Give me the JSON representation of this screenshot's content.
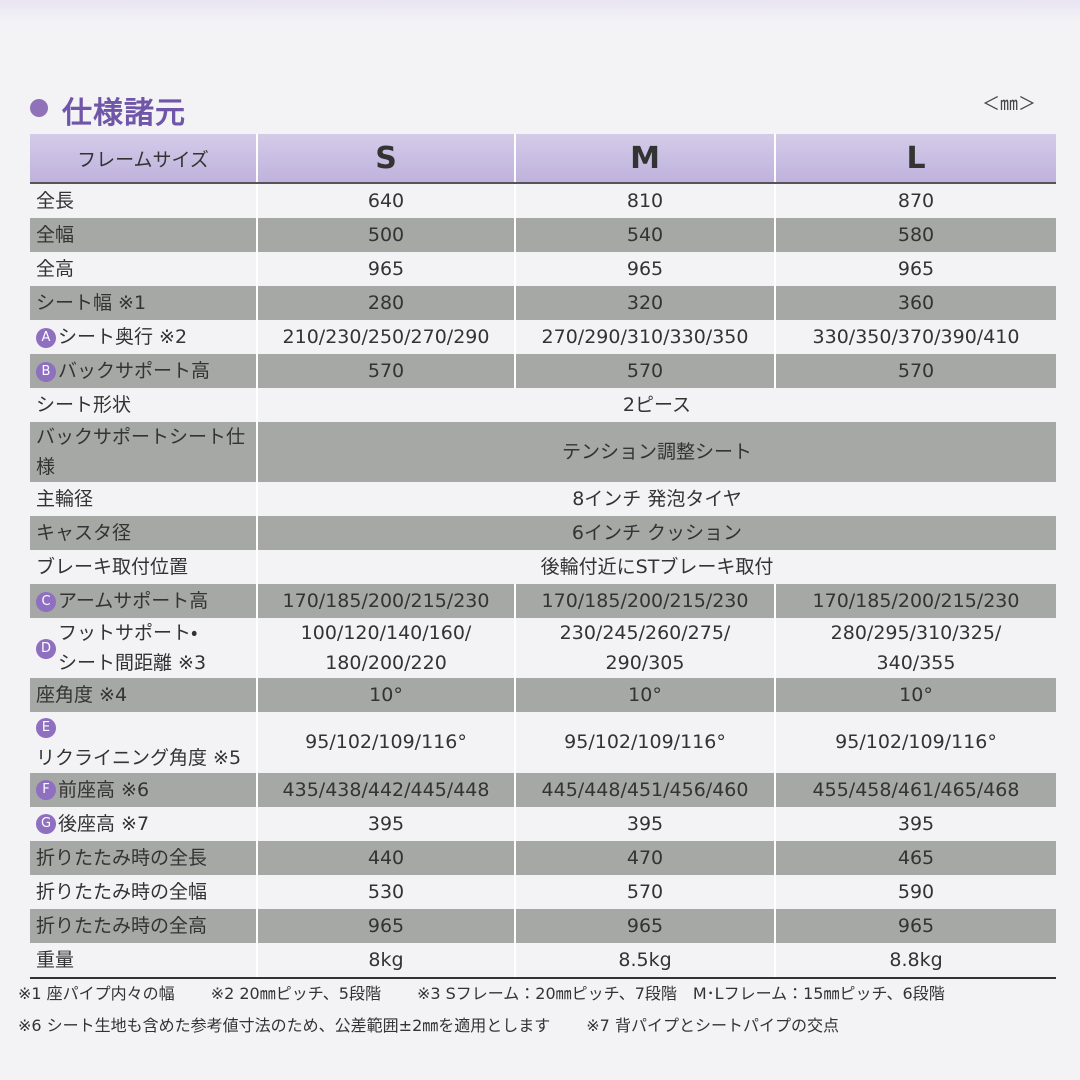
{
  "header": {
    "title": "仕様諸元",
    "unit": "＜㎜＞"
  },
  "table": {
    "columns": [
      "フレームサイズ",
      "S",
      "M",
      "L"
    ],
    "rows": [
      {
        "label": "全長",
        "values": [
          "640",
          "810",
          "870"
        ]
      },
      {
        "label": "全幅",
        "values": [
          "500",
          "540",
          "580"
        ]
      },
      {
        "label": "全高",
        "values": [
          "965",
          "965",
          "965"
        ]
      },
      {
        "label": "シート幅 ※1",
        "values": [
          "280",
          "320",
          "360"
        ]
      },
      {
        "marker": "A",
        "label": "シート奥行 ※2",
        "values": [
          "210/230/250/270/290",
          "270/290/310/330/350",
          "330/350/370/390/410"
        ]
      },
      {
        "marker": "B",
        "label": "バックサポート高",
        "values": [
          "570",
          "570",
          "570"
        ]
      },
      {
        "label": "シート形状",
        "value": "2ピース"
      },
      {
        "label": "バックサポートシート仕様",
        "value": "テンション調整シート"
      },
      {
        "label": "主輪径",
        "value": "8インチ 発泡タイヤ"
      },
      {
        "label": "キャスタ径",
        "value": "6インチ クッション"
      },
      {
        "label": "ブレーキ取付位置",
        "value": "後輪付近にSTブレーキ取付"
      },
      {
        "marker": "C",
        "label": "アームサポート高",
        "values": [
          "170/185/200/215/230",
          "170/185/200/215/230",
          "170/185/200/215/230"
        ]
      },
      {
        "marker": "D",
        "label": "フットサポート・\nシート間距離 ※3",
        "values": [
          "100/120/140/160/\n180/200/220",
          "230/245/260/275/\n290/305",
          "280/295/310/325/\n340/355"
        ]
      },
      {
        "label": "座角度 ※4",
        "values": [
          "10°",
          "10°",
          "10°"
        ]
      },
      {
        "marker": "E",
        "label": "リクライニング角度 ※5",
        "values": [
          "95/102/109/116°",
          "95/102/109/116°",
          "95/102/109/116°"
        ]
      },
      {
        "marker": "F",
        "label": "前座高 ※6",
        "values": [
          "435/438/442/445/448",
          "445/448/451/456/460",
          "455/458/461/465/468"
        ]
      },
      {
        "marker": "G",
        "label": "後座高 ※7",
        "values": [
          "395",
          "395",
          "395"
        ]
      },
      {
        "label": "折りたたみ時の全長",
        "values": [
          "440",
          "470",
          "465"
        ]
      },
      {
        "label": "折りたたみ時の全幅",
        "values": [
          "530",
          "570",
          "590"
        ]
      },
      {
        "label": "折りたたみ時の全高",
        "values": [
          "965",
          "965",
          "965"
        ]
      },
      {
        "label": "重量",
        "values": [
          "8kg",
          "8.5kg",
          "8.8kg"
        ]
      }
    ]
  },
  "footnotes": [
    [
      "※1 座パイプ内々の幅",
      "※2 20㎜ピッチ、5段階",
      "※3 Sフレーム：20㎜ピッチ、7段階　M･Lフレーム：15㎜ピッチ、6段階"
    ],
    [
      "※6 シート生地も含めた参考値寸法のため、公差範囲±2㎜を適用とします",
      "※7 背パイプとシートパイプの交点"
    ]
  ]
}
